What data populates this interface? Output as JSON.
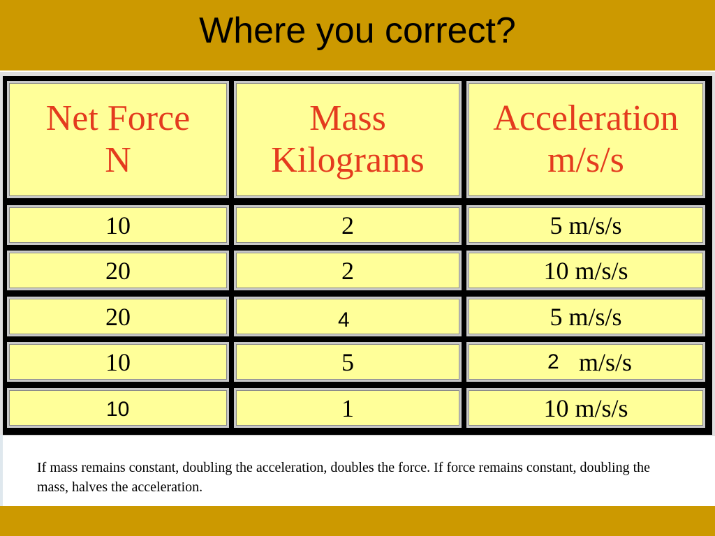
{
  "slide": {
    "title": "Where you correct?",
    "caption": "If mass remains constant, doubling the acceleration, doubles the force. If force remains constant, doubling the mass, halves the acceleration."
  },
  "table": {
    "headers": [
      {
        "line1": "Net Force",
        "line2": "N"
      },
      {
        "line1": "Mass",
        "line2": "Kilograms"
      },
      {
        "line1": "Acceleration",
        "line2": "m/s/s"
      }
    ],
    "rows": [
      [
        "10",
        "2",
        "5 m/s/s"
      ],
      [
        "20",
        "2",
        "10 m/s/s"
      ],
      [
        "20",
        "",
        "5 m/s/s"
      ],
      [
        "10",
        "5",
        "m/s/s"
      ],
      [
        "",
        "1",
        "10 m/s/s"
      ]
    ]
  },
  "answers": {
    "row3_mass": "4",
    "row4_acceleration": "2",
    "row5_force": "10"
  },
  "colors": {
    "banner": "#cc9900",
    "cell_fill": "#ffff99",
    "header_text": "#e43b1e"
  }
}
